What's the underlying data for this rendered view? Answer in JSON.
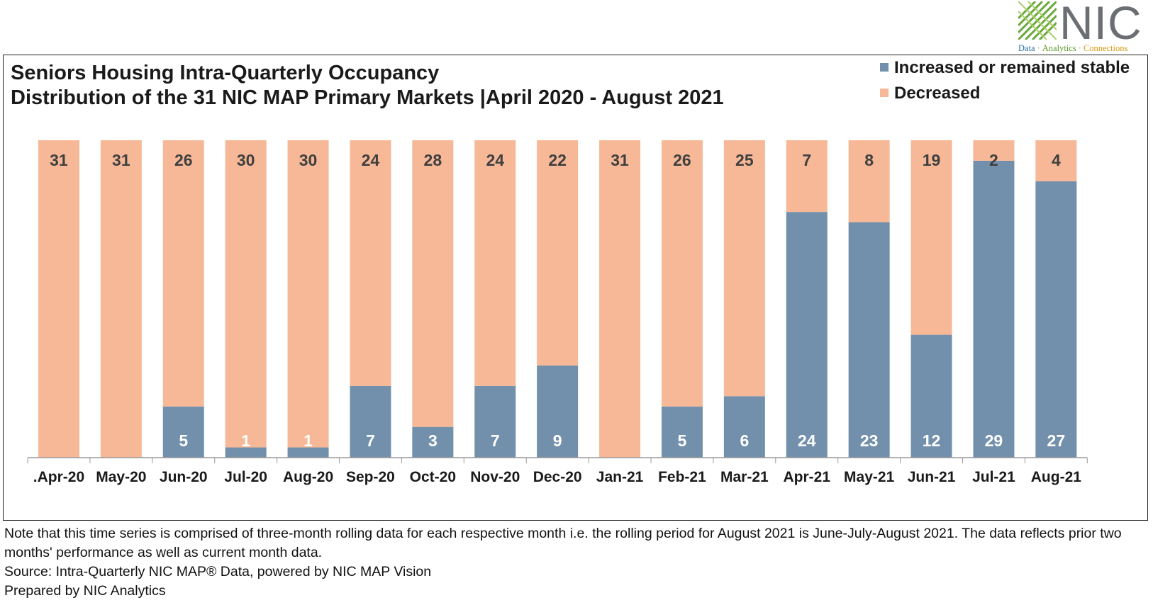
{
  "logo": {
    "name": "NIC",
    "tagline_parts": [
      "Data",
      "Analytics",
      "Connections"
    ]
  },
  "colors": {
    "increased": "#7290ab",
    "decreased": "#f6b896",
    "label_dark": "#404040",
    "label_light": "#ffffff"
  },
  "chart_data": {
    "type": "bar",
    "stacked": true,
    "title": "Seniors Housing Intra-Quarterly Occupancy",
    "subtitle": "Distribution of the 31 NIC MAP Primary Markets  |April 2020 - August 2021",
    "legend_position": "top-right",
    "ylim": [
      0,
      31
    ],
    "categories": [
      ".Apr-20",
      "May-20",
      "Jun-20",
      "Jul-20",
      "Aug-20",
      "Sep-20",
      "Oct-20",
      "Nov-20",
      "Dec-20",
      "Jan-21",
      "Feb-21",
      "Mar-21",
      "Apr-21",
      "May-21",
      "Jun-21",
      "Jul-21",
      "Aug-21"
    ],
    "series": [
      {
        "name": "Increased or remained stable",
        "values": [
          0,
          0,
          5,
          1,
          1,
          7,
          3,
          7,
          9,
          0,
          5,
          6,
          24,
          23,
          12,
          29,
          27
        ]
      },
      {
        "name": "Decreased",
        "values": [
          31,
          31,
          26,
          30,
          30,
          24,
          28,
          24,
          22,
          31,
          26,
          25,
          7,
          8,
          19,
          2,
          4
        ]
      }
    ]
  },
  "notes": {
    "line1": "Note that this time series is comprised of three-month rolling data for each respective month i.e. the rolling period for August 2021 is June-July-August 2021. The data reflects prior two months' performance as well as current month data.",
    "source": "Source: Intra-Quarterly NIC MAP® Data, powered by NIC MAP Vision",
    "prepared": "Prepared by NIC Analytics"
  }
}
